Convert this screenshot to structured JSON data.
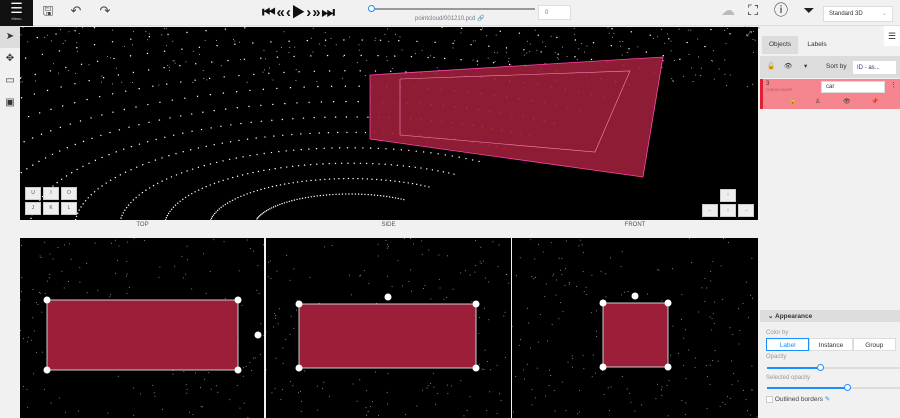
{
  "toolbar": {
    "menu": "Menu",
    "save": "Save",
    "undo": "Undo",
    "redo": "Redo",
    "filename": "pointcloud/001210.pcd",
    "frame": "0",
    "ai": "not trained",
    "fullscreen": "Fullscreen",
    "info": "Info",
    "filters": "Filters",
    "workspace": "Standard 3D",
    "player_progress": 0
  },
  "views": {
    "top": "TOP",
    "side": "SIDE",
    "front": "FRONT"
  },
  "keys": [
    "U",
    "I",
    "O",
    "J",
    "K",
    "L"
  ],
  "arrows": [
    "↑",
    "←",
    "↓",
    "→"
  ],
  "sidebar": {
    "tabs": [
      "Objects",
      "Labels"
    ],
    "sort_label": "Sort by",
    "sort_value": "ID - as...",
    "object": {
      "id": "3",
      "type": "CUBOID SHAPE",
      "label": "car"
    }
  },
  "appearance": {
    "title": "Appearance",
    "color_by": "Color by",
    "options": [
      "Label",
      "Instance",
      "Group"
    ],
    "selected": "Label",
    "opacity": "Opacity",
    "opacity_value": 0.4,
    "selected_opacity": "Selected opacity",
    "selected_opacity_value": 0.6,
    "outlined": "Outlined borders"
  },
  "colors": {
    "cuboid": "#9c1f3a",
    "object_bg": "#f5868f",
    "accent": "#1890ff"
  }
}
